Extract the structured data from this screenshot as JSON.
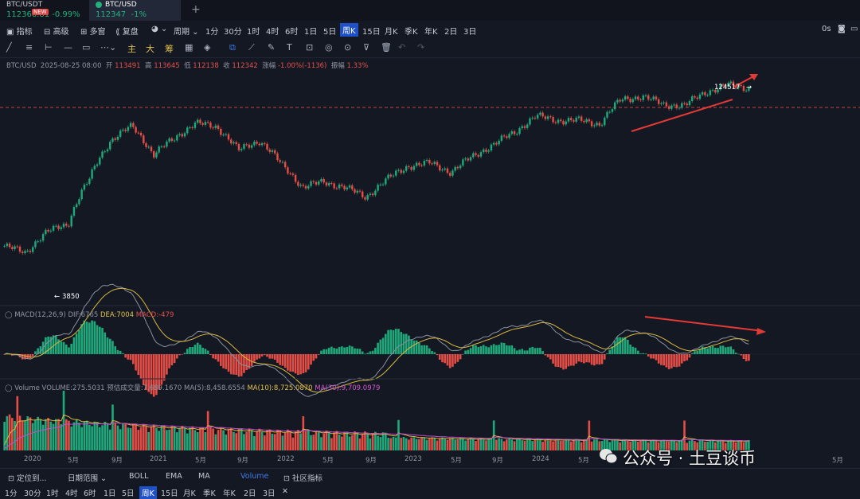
{
  "tabs": [
    {
      "symbol": "BTC/USDT",
      "price": "112366.81",
      "change": "-0.99%",
      "badge": "NEW"
    },
    {
      "symbol": "BTC/USD",
      "price": "112347",
      "change": "-1%"
    }
  ],
  "toolbar": {
    "items": [
      "指标",
      "高级",
      "多窗",
      "复盘",
      "",
      "周期",
      "1分",
      "30分",
      "1时",
      "4时",
      "6时",
      "1日",
      "5日",
      "周K",
      "15日",
      "月K",
      "季K",
      "年K",
      "2日",
      "3日"
    ],
    "selected": "周K",
    "right": "0s"
  },
  "drawbar": {
    "labels": [
      "主",
      "大",
      "筹"
    ]
  },
  "info": {
    "symbol": "BTC/USD",
    "date": "2025-08-25 08:00",
    "open_label": "开",
    "open": "113491",
    "high_label": "高",
    "high": "113645",
    "low_label": "低",
    "low": "112138",
    "close_label": "收",
    "close": "112342",
    "chg_label": "涨幅",
    "chg": "-1.00%(-1136)",
    "amp_label": "振幅",
    "amp": "1.33%"
  },
  "annotations": {
    "high_price": "124517",
    "low_price": "3850"
  },
  "macd": {
    "label": "MACD(12,26,9)",
    "dif": "DIF:6765",
    "dea": "DEA:7004",
    "macd": "MACD:-479"
  },
  "volume": {
    "label": "Volume",
    "vol": "VOLUME:275.5031",
    "est": "预估成交量:7,689.1670",
    "ma5": "MA(5):8,458.6554",
    "ma10": "MA(10):8,725.0870",
    "ma30": "MA(30):9,709.0979"
  },
  "xaxis": [
    "2020",
    "5月",
    "9月",
    "2021",
    "5月",
    "9月",
    "2022",
    "5月",
    "9月",
    "2023",
    "5月",
    "9月",
    "2024",
    "5月",
    "5月"
  ],
  "bottom": {
    "row1": [
      "定位到...",
      "日期范围",
      "BOLL",
      "EMA",
      "MA",
      "Volume",
      "社区指标"
    ],
    "row2": [
      "1分",
      "30分",
      "1时",
      "4时",
      "6时",
      "1日",
      "5日",
      "周K",
      "15日",
      "月K",
      "季K",
      "年K",
      "2日",
      "3日"
    ],
    "selected": "周K"
  },
  "watermark": "公众号 · 土豆谈币",
  "chart_data": {
    "type": "candlestick",
    "title": "BTC/USD",
    "ylim": [
      0,
      130000
    ],
    "x": [
      "2019-12",
      "2020-03",
      "2020-06",
      "2020-09",
      "2020-12",
      "2021-02",
      "2021-04",
      "2021-06",
      "2021-08",
      "2021-10",
      "2021-11",
      "2022-01",
      "2022-03",
      "2022-05",
      "2022-06",
      "2022-08",
      "2022-10",
      "2022-12",
      "2023-02",
      "2023-04",
      "2023-06",
      "2023-08",
      "2023-10",
      "2023-12",
      "2024-02",
      "2024-03",
      "2024-05",
      "2024-07",
      "2024-09",
      "2024-11",
      "2024-12",
      "2025-02",
      "2025-04",
      "2025-05",
      "2025-07",
      "2025-08"
    ],
    "close": [
      7200,
      6400,
      9200,
      10600,
      23000,
      45000,
      58000,
      35000,
      47000,
      61000,
      57000,
      38000,
      45000,
      30000,
      20000,
      22000,
      20000,
      16800,
      23000,
      29000,
      30500,
      26000,
      34000,
      42000,
      52000,
      69000,
      64000,
      64000,
      60000,
      92000,
      97000,
      84000,
      83000,
      105000,
      118000,
      112342
    ],
    "annotations": [
      "124517",
      "3850"
    ]
  }
}
